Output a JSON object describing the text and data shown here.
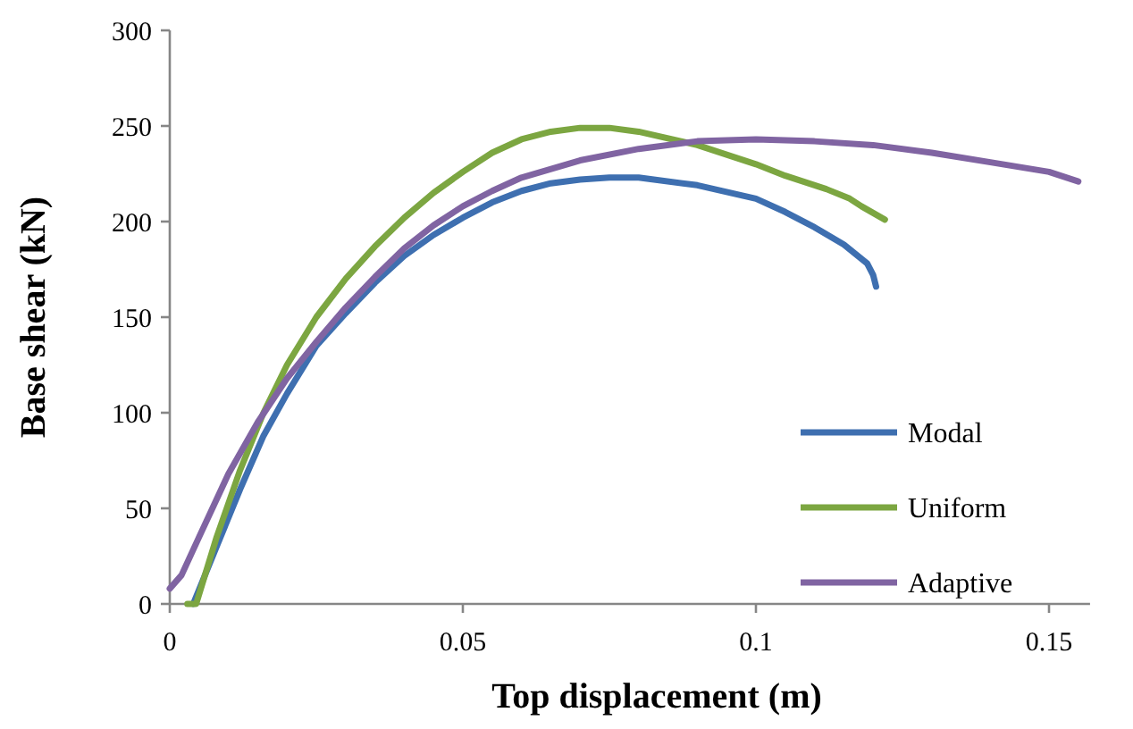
{
  "chart_data": {
    "type": "line",
    "xlabel": "Top displacement (m)",
    "ylabel": "Base shear (kN)",
    "xlim": [
      0,
      0.157
    ],
    "xticks": [
      0,
      0.05,
      0.1,
      0.15
    ],
    "ylim": [
      0,
      300
    ],
    "yticks": [
      0,
      50,
      100,
      150,
      200,
      250,
      300
    ],
    "grid": false,
    "legend": "right",
    "marker": "none",
    "line_style": "solid",
    "series": [
      {
        "name": "Modal",
        "color": "#3e6fb0",
        "x": [
          0.004,
          0.008,
          0.012,
          0.016,
          0.02,
          0.025,
          0.03,
          0.035,
          0.04,
          0.045,
          0.05,
          0.055,
          0.06,
          0.065,
          0.07,
          0.075,
          0.08,
          0.09,
          0.1,
          0.105,
          0.11,
          0.115,
          0.119,
          0.12,
          0.1205
        ],
        "values": [
          0,
          30,
          60,
          88,
          110,
          135,
          152,
          168,
          182,
          193,
          202,
          210,
          216,
          220,
          222,
          223,
          223,
          219,
          212,
          205,
          197,
          188,
          178,
          172,
          166
        ]
      },
      {
        "name": "Uniform",
        "color": "#7ca641",
        "x": [
          0.003,
          0.0045,
          0.008,
          0.012,
          0.016,
          0.02,
          0.025,
          0.03,
          0.035,
          0.04,
          0.045,
          0.05,
          0.055,
          0.06,
          0.065,
          0.07,
          0.075,
          0.08,
          0.09,
          0.1,
          0.105,
          0.112,
          0.116,
          0.118,
          0.122
        ],
        "values": [
          0,
          0,
          35,
          70,
          100,
          125,
          150,
          170,
          187,
          202,
          215,
          226,
          236,
          243,
          247,
          249,
          249,
          247,
          240,
          230,
          224,
          217,
          212,
          208,
          201
        ]
      },
      {
        "name": "Adaptive",
        "color": "#8064a2",
        "x": [
          0,
          0.002,
          0.005,
          0.01,
          0.015,
          0.02,
          0.025,
          0.03,
          0.035,
          0.04,
          0.045,
          0.05,
          0.055,
          0.06,
          0.07,
          0.08,
          0.09,
          0.1,
          0.11,
          0.12,
          0.13,
          0.14,
          0.15,
          0.155
        ],
        "values": [
          8,
          15,
          35,
          68,
          95,
          118,
          137,
          155,
          171,
          186,
          198,
          208,
          216,
          223,
          232,
          238,
          242,
          243,
          242,
          240,
          236,
          231,
          226,
          221
        ]
      }
    ]
  }
}
